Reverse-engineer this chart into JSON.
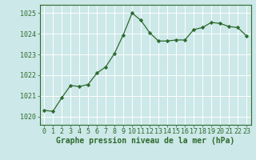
{
  "x": [
    0,
    1,
    2,
    3,
    4,
    5,
    6,
    7,
    8,
    9,
    10,
    11,
    12,
    13,
    14,
    15,
    16,
    17,
    18,
    19,
    20,
    21,
    22,
    23
  ],
  "y": [
    1020.3,
    1020.25,
    1020.9,
    1021.5,
    1021.45,
    1021.55,
    1022.1,
    1022.4,
    1023.05,
    1023.95,
    1025.0,
    1024.65,
    1024.05,
    1023.65,
    1023.65,
    1023.7,
    1023.7,
    1024.2,
    1024.3,
    1024.55,
    1024.5,
    1024.35,
    1024.3,
    1023.9
  ],
  "line_color": "#2d6a2d",
  "marker": "D",
  "marker_size": 2.2,
  "bg_color": "#cce8e8",
  "grid_color": "#ffffff",
  "ylabel_ticks": [
    1020,
    1021,
    1022,
    1023,
    1024,
    1025
  ],
  "xticks": [
    0,
    1,
    2,
    3,
    4,
    5,
    6,
    7,
    8,
    9,
    10,
    11,
    12,
    13,
    14,
    15,
    16,
    17,
    18,
    19,
    20,
    21,
    22,
    23
  ],
  "ylim": [
    1019.6,
    1025.4
  ],
  "xlim": [
    -0.5,
    23.5
  ],
  "xlabel": "Graphe pression niveau de la mer (hPa)",
  "xlabel_fontsize": 7,
  "tick_fontsize": 6,
  "line_color_dark": "#2d6a2d"
}
